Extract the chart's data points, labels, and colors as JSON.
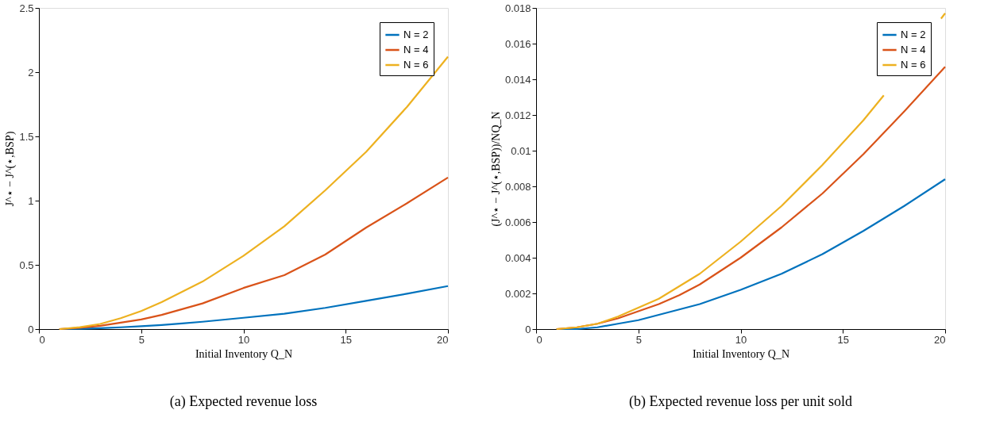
{
  "chart_data": [
    {
      "type": "line",
      "title": "(a) Expected revenue loss",
      "xlabel": "Initial Inventory Q_N",
      "ylabel": "J^⋆ − J^(⋆,BSP)",
      "x": [
        1,
        2,
        3,
        4,
        5,
        6,
        7,
        8,
        10,
        12,
        14,
        16,
        18,
        20
      ],
      "xlim": [
        0,
        20
      ],
      "xticks": [
        0,
        5,
        10,
        15,
        20
      ],
      "ylim": [
        0,
        2.5
      ],
      "yticks": [
        0,
        0.5,
        1,
        1.5,
        2,
        2.5
      ],
      "legend": "top right",
      "grid": false,
      "series": [
        {
          "name": "N = 2",
          "color": "#0072bd",
          "values": [
            0,
            0.002,
            0.007,
            0.014,
            0.022,
            0.032,
            0.044,
            0.057,
            0.088,
            0.12,
            0.165,
            0.22,
            0.275,
            0.335
          ]
        },
        {
          "name": "N = 4",
          "color": "#d95319",
          "values": [
            0,
            0.01,
            0.025,
            0.05,
            0.075,
            0.11,
            0.155,
            0.2,
            0.32,
            0.42,
            0.58,
            0.79,
            0.98,
            1.18
          ]
        },
        {
          "name": "N = 6",
          "color": "#edb120",
          "values": [
            0,
            0.015,
            0.04,
            0.085,
            0.14,
            0.21,
            0.29,
            0.37,
            0.57,
            0.8,
            1.08,
            1.38,
            1.73,
            2.12
          ]
        }
      ]
    },
    {
      "type": "line",
      "title": "(b) Expected revenue loss per unit sold",
      "xlabel": "Initial Inventory Q_N",
      "ylabel": "(J^⋆ − J^(⋆,BSP))/NQ_N",
      "x": [
        1,
        2,
        3,
        4,
        5,
        6,
        7,
        8,
        10,
        12,
        14,
        16,
        18,
        20
      ],
      "xlim": [
        0,
        20
      ],
      "xticks": [
        0,
        5,
        10,
        15,
        20
      ],
      "ylim": [
        0,
        0.018
      ],
      "yticks": [
        0,
        0.002,
        0.004,
        0.006,
        0.008,
        0.01,
        0.012,
        0.014,
        0.016,
        0.018
      ],
      "legend": "top right",
      "grid": false,
      "series": [
        {
          "name": "N = 2",
          "color": "#0072bd",
          "values": [
            0,
            0,
            0.0001,
            0.0003,
            0.0005,
            0.0008,
            0.0011,
            0.0014,
            0.0022,
            0.0031,
            0.0042,
            0.0055,
            0.0069,
            0.0084
          ]
        },
        {
          "name": "N = 4",
          "color": "#d95319",
          "values": [
            0,
            0.0001,
            0.0003,
            0.0006,
            0.001,
            0.0014,
            0.0019,
            0.0025,
            0.004,
            0.0057,
            0.0076,
            0.0098,
            0.0122,
            0.0147
          ]
        },
        {
          "name": "N = 6",
          "color": "#edb120",
          "x": [
            1,
            2,
            3,
            4,
            5,
            6,
            7,
            8,
            10,
            12,
            14,
            16,
            17,
            18,
            19.8,
            20
          ],
          "values": [
            0,
            0.0001,
            0.0003,
            0.0007,
            0.0012,
            0.0017,
            0.0024,
            0.0031,
            0.0049,
            0.0069,
            0.0092,
            0.0117,
            0.0131,
            null,
            0.0174,
            0.0177
          ]
        }
      ]
    }
  ]
}
